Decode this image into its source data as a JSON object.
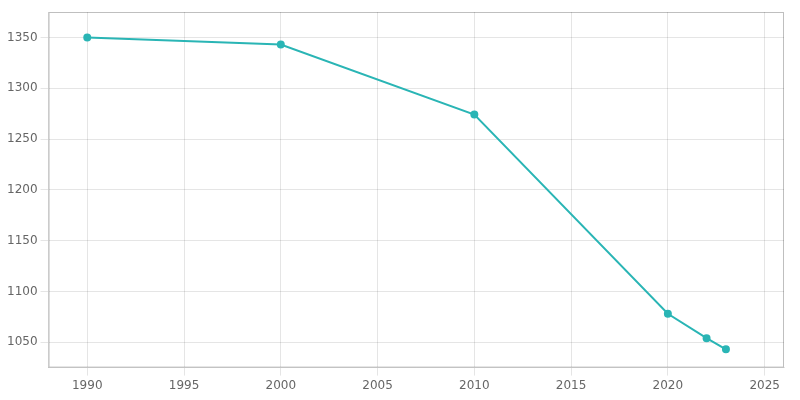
{
  "chart_data": {
    "type": "line",
    "x": [
      1990,
      2000,
      2010,
      2020,
      2022,
      2023
    ],
    "values": [
      1350,
      1343,
      1274,
      1078,
      1054,
      1043
    ],
    "color": "#2ab5b5",
    "marker": "circle",
    "xlim": [
      1988,
      2026
    ],
    "xticks": [
      1990,
      1995,
      2000,
      2005,
      2010,
      2015,
      2020,
      2025
    ],
    "ylim": [
      1025,
      1375
    ],
    "yticks": [
      1050,
      1100,
      1150,
      1200,
      1250,
      1300,
      1350
    ],
    "grid": true
  }
}
